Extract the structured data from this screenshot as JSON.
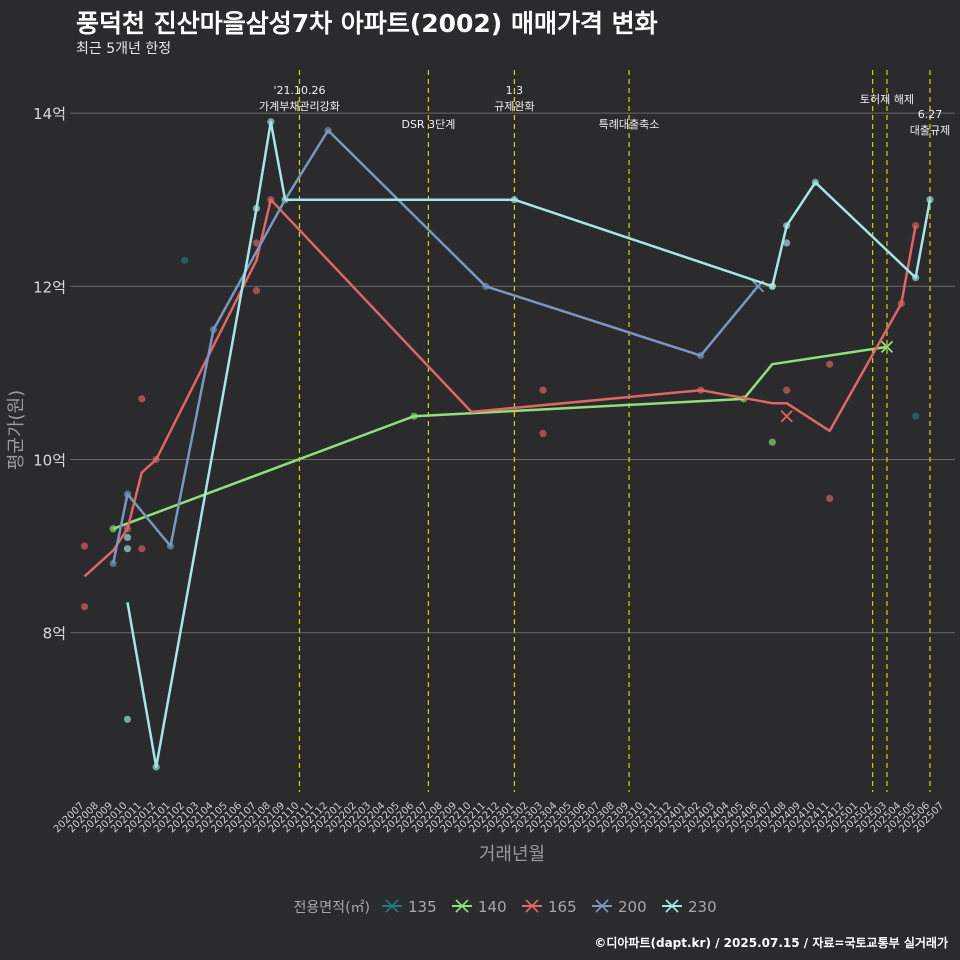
{
  "title": "풍덕천 진산마을삼성7차 아파트(2002) 매매가격 변화",
  "subtitle": "최근 5개년 한정",
  "caption": "©디아파트(dapt.kr) / 2025.07.15 / 자료=국토교통부 실거래가",
  "chart_data": {
    "type": "line",
    "xlabel": "거래년월",
    "ylabel": "평균가(원)",
    "x_ticks": [
      "202007",
      "202008",
      "202009",
      "202010",
      "202011",
      "202012",
      "202101",
      "202102",
      "202103",
      "202104",
      "202105",
      "202106",
      "202107",
      "202108",
      "202109",
      "202110",
      "202111",
      "202112",
      "202201",
      "202202",
      "202203",
      "202204",
      "202205",
      "202206",
      "202207",
      "202208",
      "202209",
      "202210",
      "202211",
      "202212",
      "202301",
      "202302",
      "202303",
      "202304",
      "202305",
      "202306",
      "202307",
      "202308",
      "202309",
      "202310",
      "202311",
      "202312",
      "202401",
      "202402",
      "202403",
      "202404",
      "202405",
      "202406",
      "202407",
      "202408",
      "202409",
      "202410",
      "202411",
      "202412",
      "202501",
      "202502",
      "202503",
      "202504",
      "202505",
      "202506",
      "202507"
    ],
    "ylim": [
      6.2,
      14.4
    ],
    "y_ticks": [
      8,
      10,
      12,
      14
    ],
    "y_tick_labels": [
      "8억",
      "10억",
      "12억",
      "14억"
    ],
    "grid": true,
    "legend": {
      "title": "전용면적(㎡)",
      "position": "bottom",
      "items": [
        "135",
        "140",
        "165",
        "200",
        "230"
      ]
    },
    "series": [
      {
        "name": "135",
        "color": "#1f7a7a",
        "line": [],
        "points": [
          {
            "x": "202102",
            "y": 12.3
          },
          {
            "x": "202505",
            "y": 10.5
          }
        ]
      },
      {
        "name": "140",
        "color": "#8fe07a",
        "line": [
          {
            "x": "202009",
            "y": 9.2
          },
          {
            "x": "202206",
            "y": 10.5
          },
          {
            "x": "202405",
            "y": 10.7
          },
          {
            "x": "202407",
            "y": 11.1
          },
          {
            "x": "202503",
            "y": 11.3
          }
        ],
        "points": [
          {
            "x": "202009",
            "y": 9.2
          },
          {
            "x": "202206",
            "y": 10.5
          },
          {
            "x": "202405",
            "y": 10.7
          },
          {
            "x": "202407",
            "y": 10.2
          },
          {
            "x": "202407",
            "y": 12.0
          }
        ],
        "crosses": [
          {
            "x": "202503",
            "y": 11.3
          }
        ]
      },
      {
        "name": "165",
        "color": "#e06666",
        "line": [
          {
            "x": "202007",
            "y": 8.65
          },
          {
            "x": "202009",
            "y": 8.95
          },
          {
            "x": "202010",
            "y": 9.2
          },
          {
            "x": "202011",
            "y": 9.85
          },
          {
            "x": "202012",
            "y": 10.0
          },
          {
            "x": "202107",
            "y": 12.3
          },
          {
            "x": "202108",
            "y": 13.0
          },
          {
            "x": "202210",
            "y": 10.55
          },
          {
            "x": "202402",
            "y": 10.8
          },
          {
            "x": "202407",
            "y": 10.65
          },
          {
            "x": "202408",
            "y": 10.65
          },
          {
            "x": "202411",
            "y": 10.33
          },
          {
            "x": "202504",
            "y": 11.8
          },
          {
            "x": "202505",
            "y": 12.7
          }
        ],
        "points": [
          {
            "x": "202007",
            "y": 9.0
          },
          {
            "x": "202007",
            "y": 8.3
          },
          {
            "x": "202010",
            "y": 9.2
          },
          {
            "x": "202011",
            "y": 8.97
          },
          {
            "x": "202011",
            "y": 10.7
          },
          {
            "x": "202012",
            "y": 10.0
          },
          {
            "x": "202107",
            "y": 12.5
          },
          {
            "x": "202107",
            "y": 11.95
          },
          {
            "x": "202108",
            "y": 13.0
          },
          {
            "x": "202303",
            "y": 10.8
          },
          {
            "x": "202303",
            "y": 10.3
          },
          {
            "x": "202402",
            "y": 10.8
          },
          {
            "x": "202408",
            "y": 10.8
          },
          {
            "x": "202411",
            "y": 11.1
          },
          {
            "x": "202411",
            "y": 9.55
          },
          {
            "x": "202504",
            "y": 11.8
          },
          {
            "x": "202505",
            "y": 12.7
          }
        ],
        "crosses": [
          {
            "x": "202408",
            "y": 10.5
          }
        ]
      },
      {
        "name": "200",
        "color": "#7b96bf",
        "line": [
          {
            "x": "202009",
            "y": 8.8
          },
          {
            "x": "202010",
            "y": 9.6
          },
          {
            "x": "202101",
            "y": 9.0
          },
          {
            "x": "202104",
            "y": 11.5
          },
          {
            "x": "202109",
            "y": 13.0
          },
          {
            "x": "202112",
            "y": 13.8
          },
          {
            "x": "202211",
            "y": 12.0
          },
          {
            "x": "202402",
            "y": 11.2
          },
          {
            "x": "202406",
            "y": 12.0
          }
        ],
        "points": [
          {
            "x": "202009",
            "y": 8.8
          },
          {
            "x": "202010",
            "y": 9.6
          },
          {
            "x": "202101",
            "y": 9.0
          },
          {
            "x": "202104",
            "y": 11.5
          },
          {
            "x": "202112",
            "y": 13.8
          },
          {
            "x": "202211",
            "y": 12.0
          },
          {
            "x": "202402",
            "y": 11.2
          }
        ],
        "crosses": [
          {
            "x": "202406",
            "y": 12.0
          }
        ]
      },
      {
        "name": "230",
        "color": "#a7e6e6",
        "line": [
          {
            "x": "202010",
            "y": 8.35
          },
          {
            "x": "202012",
            "y": 6.45
          },
          {
            "x": "202107",
            "y": 12.9
          },
          {
            "x": "202108",
            "y": 13.9
          },
          {
            "x": "202109",
            "y": 13.0
          },
          {
            "x": "202301",
            "y": 13.0
          },
          {
            "x": "202407",
            "y": 12.0
          },
          {
            "x": "202408",
            "y": 12.7
          },
          {
            "x": "202410",
            "y": 13.2
          },
          {
            "x": "202505",
            "y": 12.1
          },
          {
            "x": "202506",
            "y": 13.0
          }
        ],
        "points": [
          {
            "x": "202010",
            "y": 7.0
          },
          {
            "x": "202010",
            "y": 9.1
          },
          {
            "x": "202010",
            "y": 8.97
          },
          {
            "x": "202012",
            "y": 6.45
          },
          {
            "x": "202107",
            "y": 12.9
          },
          {
            "x": "202108",
            "y": 13.9
          },
          {
            "x": "202109",
            "y": 13.0
          },
          {
            "x": "202301",
            "y": 13.0
          },
          {
            "x": "202407",
            "y": 12.0
          },
          {
            "x": "202408",
            "y": 12.7
          },
          {
            "x": "202408",
            "y": 12.5
          },
          {
            "x": "202410",
            "y": 13.2
          },
          {
            "x": "202505",
            "y": 12.1
          },
          {
            "x": "202506",
            "y": 13.0
          }
        ]
      }
    ],
    "annotations": [
      {
        "x": "202110",
        "lines": [
          "'21.10.26",
          "가계부채관리강화"
        ],
        "row": "upper"
      },
      {
        "x": "202207",
        "lines": [
          "DSR 3단계"
        ],
        "row": "lower"
      },
      {
        "x": "202301",
        "lines": [
          "1.3",
          "규제완화"
        ],
        "row": "upper"
      },
      {
        "x": "202309",
        "lines": [
          "특례대출축소"
        ],
        "row": "lower"
      },
      {
        "x": "202502",
        "lines": [],
        "row": "upper"
      },
      {
        "x": "202503",
        "lines": [
          "토허제 해제"
        ],
        "row": "upper"
      },
      {
        "x": "202506",
        "lines": [
          "6.27",
          "대출규제"
        ],
        "row": "lower"
      }
    ],
    "annotation_color": "#d4d400"
  }
}
